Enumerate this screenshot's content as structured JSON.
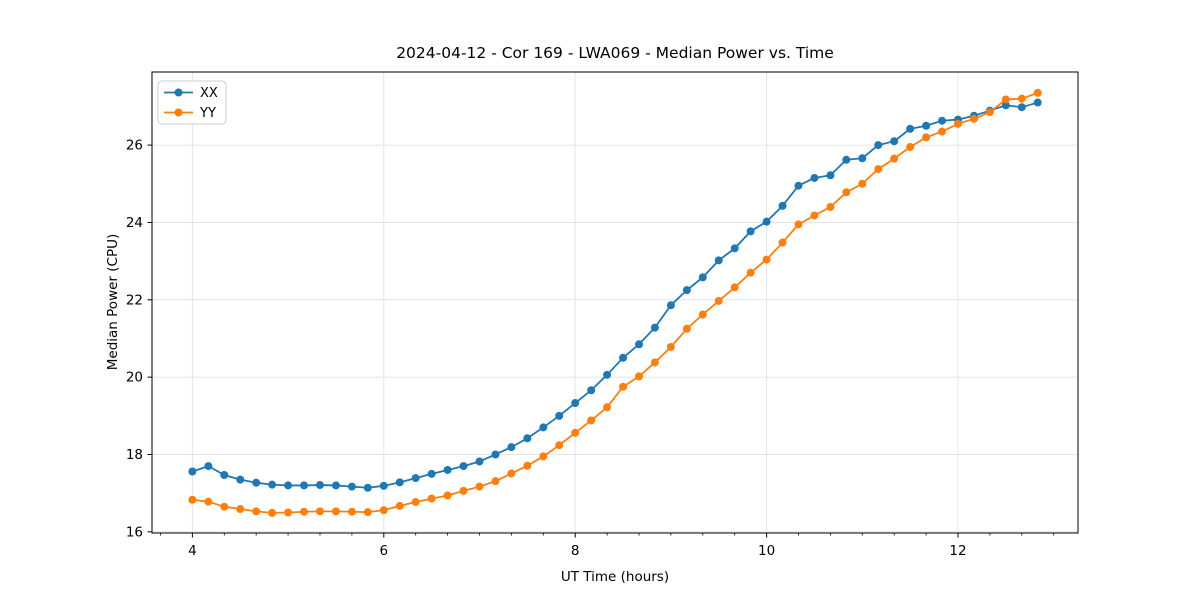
{
  "figure": {
    "title": "2024-04-12 - Cor 169 - LWA069 - Median Power vs. Time",
    "xlabel": "UT Time (hours)",
    "ylabel": "Median Power (CPU)"
  },
  "colors": {
    "series_xx": "#1f77b4",
    "series_yy": "#ff7f0e",
    "grid": "#e4e4e4",
    "spine": "#000000",
    "background": "#ffffff",
    "legend_border": "#cccccc"
  },
  "chart_data": {
    "type": "line",
    "title": "2024-04-12 - Cor 169 - LWA069 - Median Power vs. Time",
    "xlabel": "UT Time (hours)",
    "ylabel": "Median Power (CPU)",
    "xlim": [
      3.578,
      13.254
    ],
    "ylim": [
      15.97,
      27.89
    ],
    "x_ticks": [
      4,
      6,
      8,
      10,
      12
    ],
    "y_ticks": [
      16,
      18,
      20,
      22,
      24,
      26
    ],
    "x_minor_tick_step": 0.3333,
    "grid": true,
    "legend_position": "upper left",
    "marker": "circle",
    "x": [
      4.0,
      4.167,
      4.333,
      4.5,
      4.667,
      4.833,
      5.0,
      5.167,
      5.333,
      5.5,
      5.667,
      5.833,
      6.0,
      6.167,
      6.333,
      6.5,
      6.667,
      6.833,
      7.0,
      7.167,
      7.333,
      7.5,
      7.667,
      7.833,
      8.0,
      8.167,
      8.333,
      8.5,
      8.667,
      8.833,
      9.0,
      9.167,
      9.333,
      9.5,
      9.667,
      9.833,
      10.0,
      10.167,
      10.333,
      10.5,
      10.667,
      10.833,
      11.0,
      11.167,
      11.333,
      11.5,
      11.667,
      11.833,
      12.0,
      12.167,
      12.333,
      12.5,
      12.667,
      12.833
    ],
    "series": [
      {
        "name": "XX",
        "color": "#1f77b4",
        "values": [
          17.56,
          17.7,
          17.47,
          17.35,
          17.27,
          17.22,
          17.2,
          17.2,
          17.21,
          17.2,
          17.17,
          17.14,
          17.19,
          17.28,
          17.39,
          17.5,
          17.6,
          17.7,
          17.82,
          18.0,
          18.19,
          18.42,
          18.7,
          19.0,
          19.33,
          19.66,
          20.06,
          20.5,
          20.85,
          21.28,
          21.86,
          22.25,
          22.58,
          23.02,
          23.33,
          23.77,
          24.02,
          24.43,
          24.95,
          25.15,
          25.22,
          25.62,
          25.66,
          26.0,
          26.1,
          26.42,
          26.5,
          26.63,
          26.66,
          26.76,
          26.89,
          27.03,
          26.98,
          27.1
        ]
      },
      {
        "name": "YY",
        "color": "#ff7f0e",
        "values": [
          16.83,
          16.78,
          16.65,
          16.59,
          16.53,
          16.49,
          16.5,
          16.52,
          16.53,
          16.53,
          16.52,
          16.51,
          16.56,
          16.67,
          16.77,
          16.86,
          16.94,
          17.06,
          17.17,
          17.31,
          17.51,
          17.71,
          17.95,
          18.24,
          18.56,
          18.88,
          19.22,
          19.75,
          20.02,
          20.38,
          20.78,
          21.25,
          21.62,
          21.97,
          22.32,
          22.7,
          23.04,
          23.48,
          23.95,
          24.18,
          24.4,
          24.78,
          25.0,
          25.38,
          25.65,
          25.95,
          26.2,
          26.35,
          26.55,
          26.68,
          26.85,
          27.18,
          27.2,
          27.35
        ]
      }
    ]
  }
}
